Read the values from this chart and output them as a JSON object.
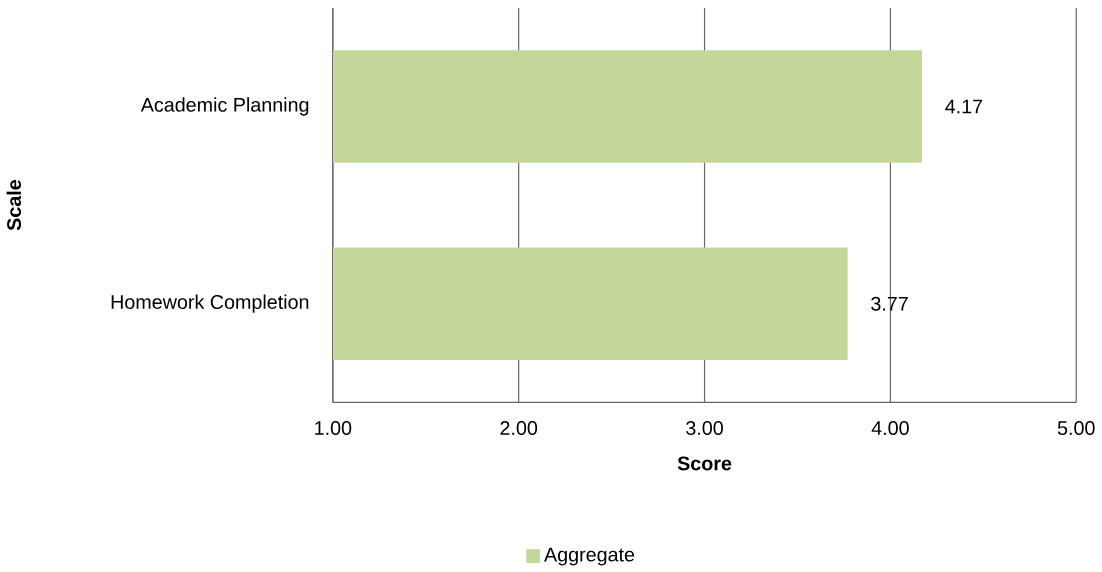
{
  "chart_data": {
    "type": "bar",
    "orientation": "horizontal",
    "xlabel": "Score",
    "ylabel": "Scale",
    "categories": [
      "Academic Planning",
      "Homework Completion"
    ],
    "series": [
      {
        "name": "Aggregate",
        "color": "#c4d79b",
        "values": [
          4.17,
          3.77
        ]
      }
    ],
    "xlim": [
      1,
      5
    ],
    "xticks": [
      {
        "value": 1,
        "label": "1.00"
      },
      {
        "value": 2,
        "label": "2.00"
      },
      {
        "value": 3,
        "label": "3.00"
      },
      {
        "value": 4,
        "label": "4.00"
      },
      {
        "value": 5,
        "label": "5.00"
      }
    ],
    "grid": "x",
    "legend": "bottom",
    "data_labels": true
  }
}
